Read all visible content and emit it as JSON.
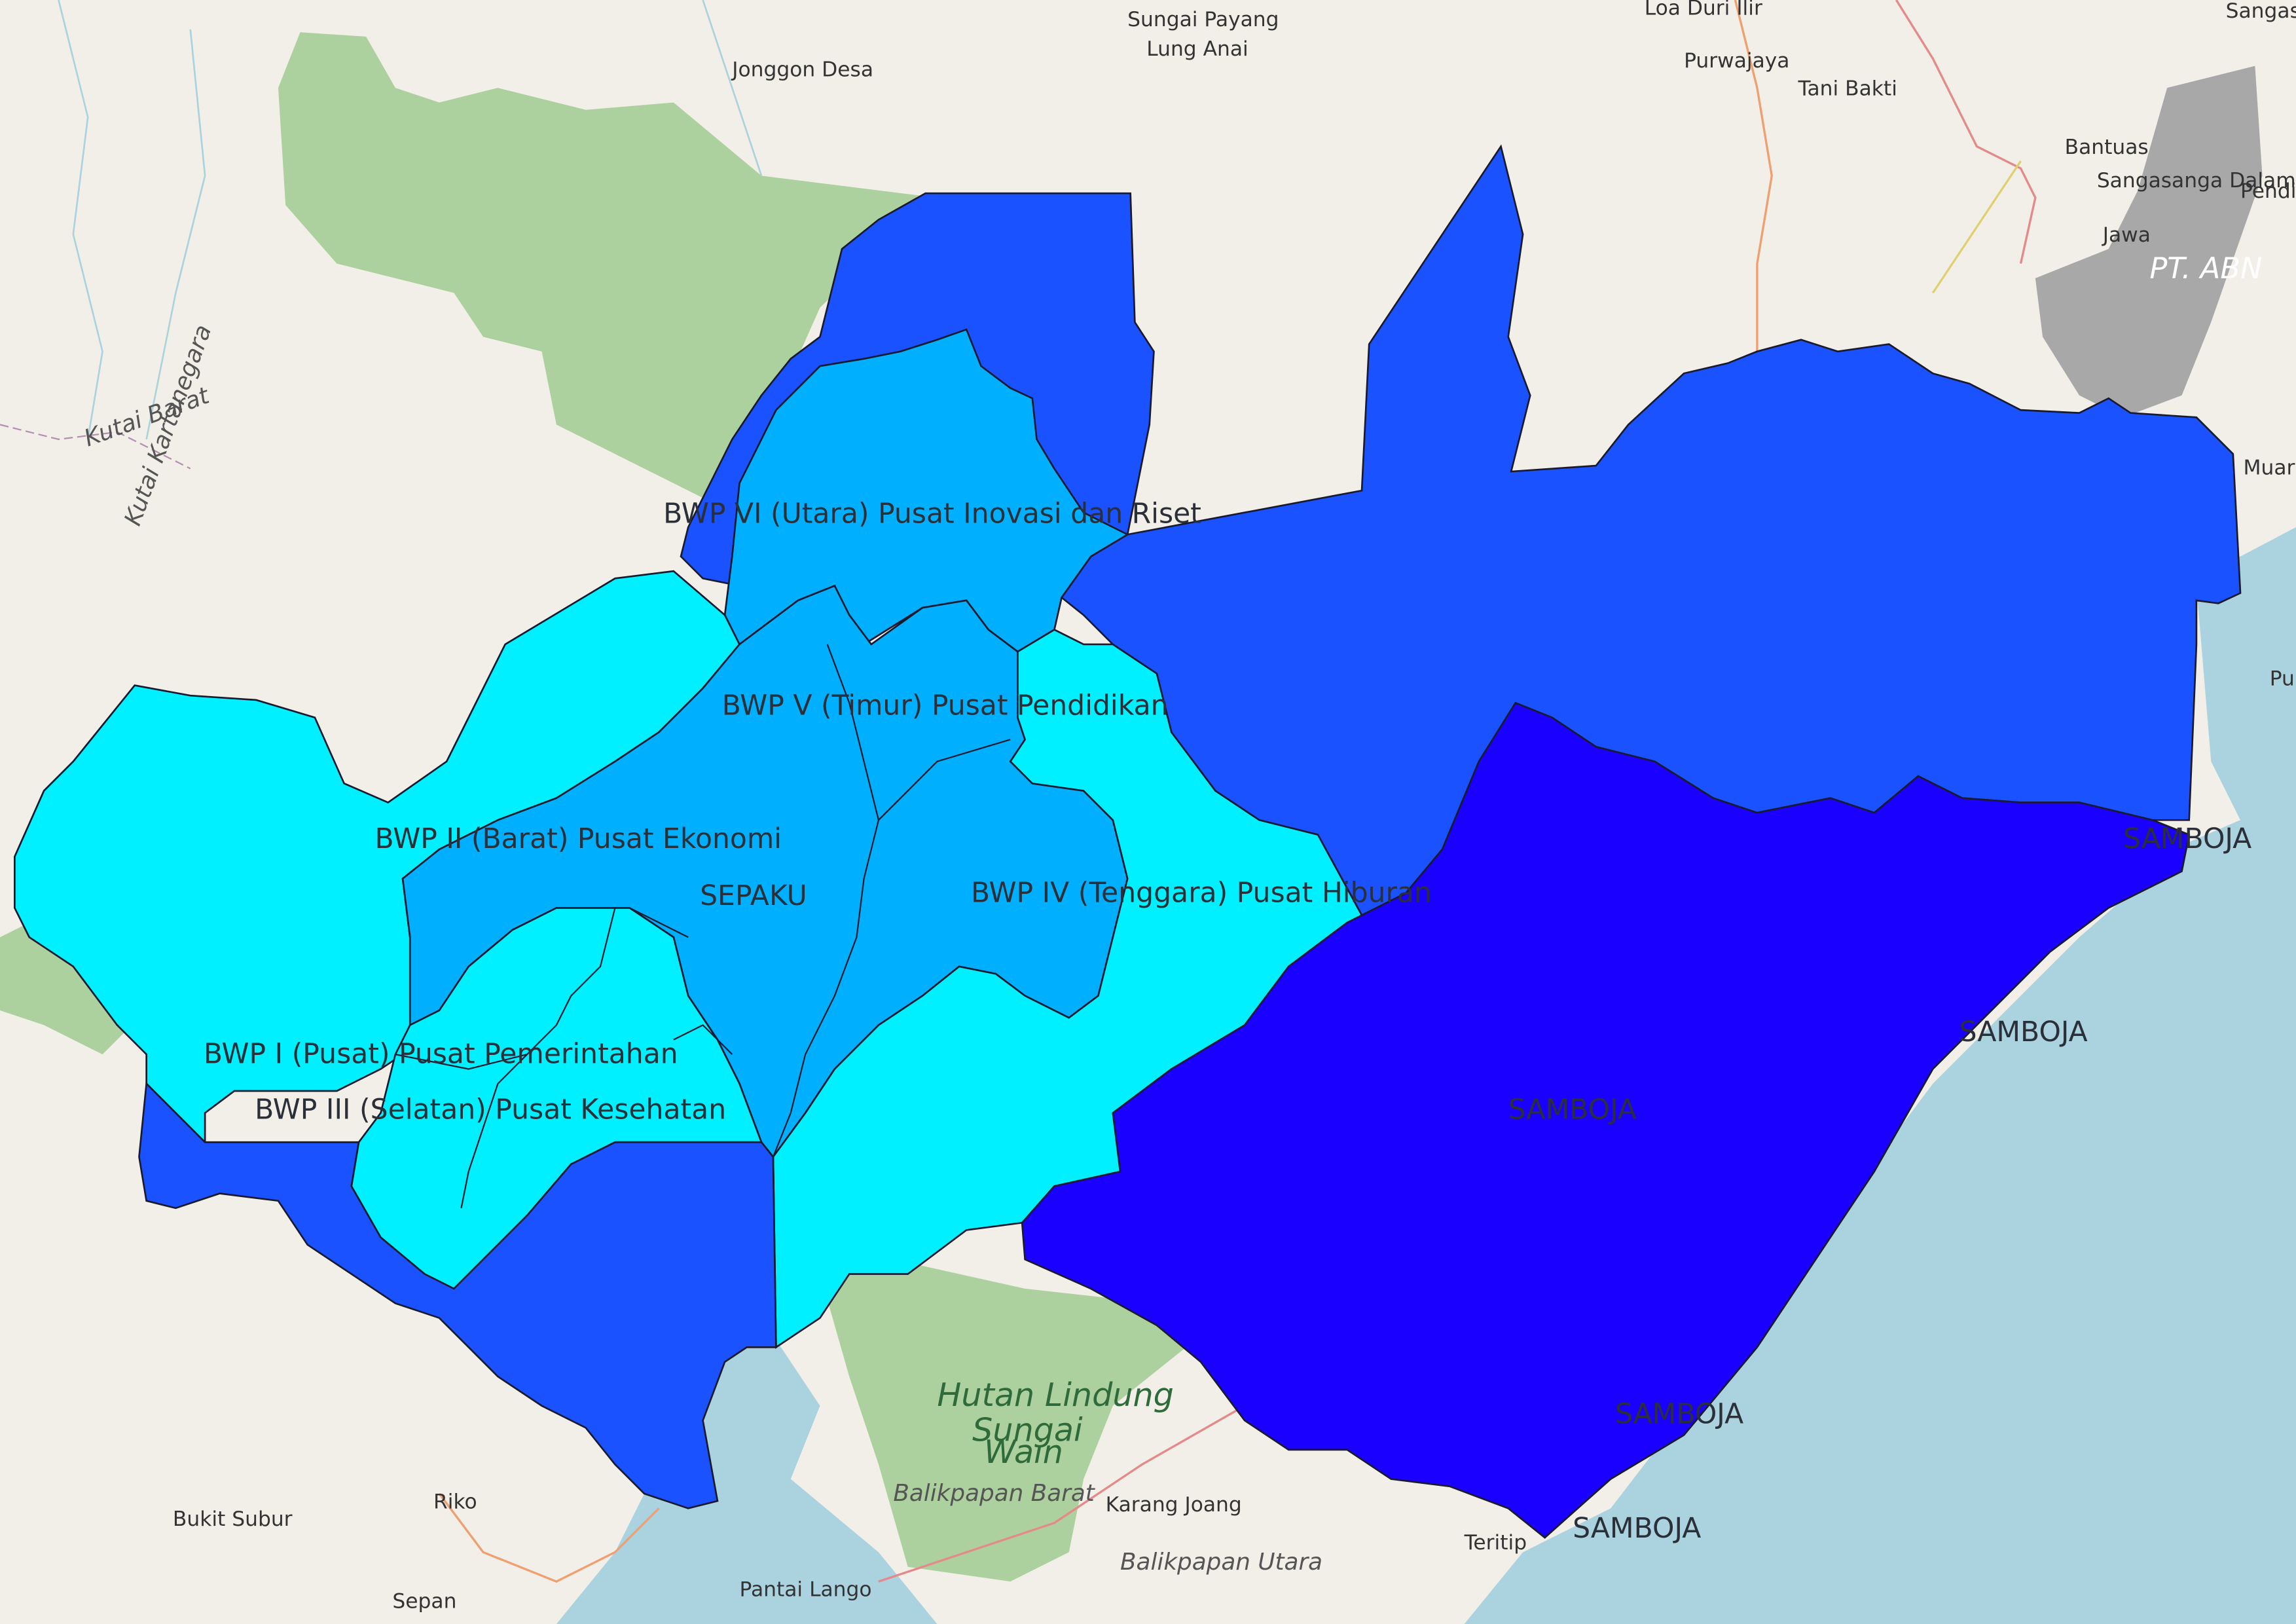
{
  "zone_labels": {
    "bwp_vi": "BWP VI (Utara) Pusat Inovasi dan Riset",
    "bwp_v": "BWP V (Timur) Pusat Pendidikan",
    "bwp_ii": "BWP II (Barat) Pusat Ekonomi",
    "sepaku": "SEPAKU",
    "bwp_iv": "BWP IV (Tenggara) Pusat Hiburan",
    "bwp_i": "BWP I (Pusat) Pusat Pemerintahan",
    "bwp_iii": "BWP III (Selatan) Pusat Kesehatan",
    "samboja_1": "SAMBOJA",
    "samboja_2": "SAMBOJA",
    "samboja_3": "SAMBOJA",
    "samboja_4": "SAMBOJA",
    "samboja_5": "SAMBOJA"
  },
  "basemap_labels": {
    "sungai_payang": "Sungai Payang",
    "lung_anai": "Lung Anai",
    "jonggon_desa": "Jonggon Desa",
    "loa_duri_ilir": "Loa Duri Ilir",
    "purwajaya": "Purwajaya",
    "tani_bakti": "Tani Bakti",
    "bantuas": "Bantuas",
    "sangasanga_dalam": "Sangasanga Dalam",
    "jawa": "Jawa",
    "pendingin": "Pendingin",
    "sangasanga_muara": "Sangasanga Muara",
    "pt_abn": "PT. ABN",
    "muara_kembang": "Muara Kem",
    "pulau": "Pulau",
    "hutan_lindung": "Hutan Lindung",
    "sungai_wain_1": "Sungai",
    "sungai_wain_2": "Wain",
    "balikpapan_barat": "Balikpapan Barat",
    "karang_joang": "Karang Joang",
    "balikpapan_utara": "Balikpapan Utara",
    "bukit_subur": "Bukit Subur",
    "pantai_lango": "Pantai Lango",
    "sepan": "Sepan",
    "riko": "Riko",
    "teritip": "Teritip",
    "kutai_barat": "Kutai Barat",
    "kutai_kartanegara": "Kutai Kartanegara"
  },
  "colors": {
    "background": "#f2efe9",
    "sea": "#aad3df",
    "forest": "#add19e",
    "mine": "#a8a8a8",
    "cyan": "#00f0ff",
    "light_blue": "#00b0ff",
    "mid_blue": "#1a52ff",
    "deep_blue": "#1a00ff",
    "border": "#1a1a2e"
  }
}
